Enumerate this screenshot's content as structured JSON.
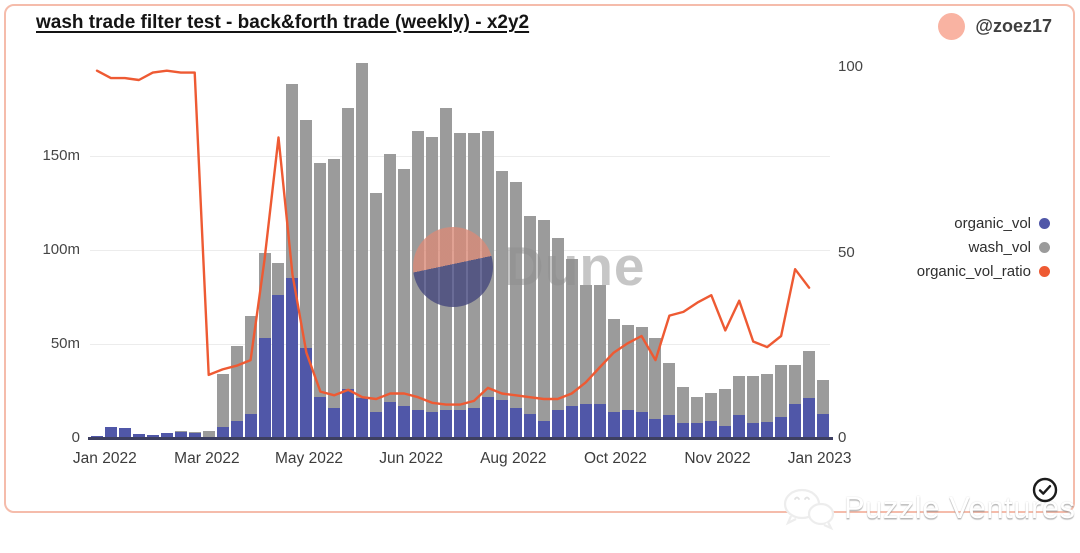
{
  "header": {
    "title": "wash trade filter test - back&forth trade (weekly) - x2y2",
    "account": "@zoez17"
  },
  "legend": [
    {
      "label": "organic_vol",
      "color": "#5057a8"
    },
    {
      "label": "wash_vol",
      "color": "#9b9b9b"
    },
    {
      "label": "organic_vol_ratio",
      "color": "#ee5a33"
    }
  ],
  "watermarks": {
    "dune": "Dune",
    "bottom": "Puzzle Ventures"
  },
  "chart_data": {
    "type": "bar",
    "subtype": "stacked-weekly-bars-with-ratio-line",
    "title": "wash trade filter test - back&forth trade (weekly) - x2y2",
    "x_tick_labels": [
      "Jan 2022",
      "Mar 2022",
      "May 2022",
      "Jun 2022",
      "Aug 2022",
      "Oct 2022",
      "Nov 2022",
      "Jan 2023"
    ],
    "left_axis": {
      "unit": "m",
      "max": 201,
      "ticks": [
        {
          "label": "150m",
          "value": 150
        },
        {
          "label": "100m",
          "value": 100
        },
        {
          "label": "50m",
          "value": 50
        },
        {
          "label": "0",
          "value": 0
        }
      ]
    },
    "right_axis": {
      "max": 100,
      "ticks": [
        {
          "label": "100",
          "value": 100
        },
        {
          "label": "50",
          "value": 50
        },
        {
          "label": "0",
          "value": 0
        }
      ]
    },
    "weeks": [
      "2022-01-02",
      "2022-01-09",
      "2022-01-16",
      "2022-01-23",
      "2022-01-30",
      "2022-02-06",
      "2022-02-13",
      "2022-02-20",
      "2022-02-27",
      "2022-03-06",
      "2022-03-13",
      "2022-03-20",
      "2022-03-27",
      "2022-04-03",
      "2022-04-10",
      "2022-04-17",
      "2022-04-24",
      "2022-05-01",
      "2022-05-08",
      "2022-05-15",
      "2022-05-22",
      "2022-05-29",
      "2022-06-05",
      "2022-06-12",
      "2022-06-19",
      "2022-06-26",
      "2022-07-03",
      "2022-07-10",
      "2022-07-17",
      "2022-07-24",
      "2022-07-31",
      "2022-08-07",
      "2022-08-14",
      "2022-08-21",
      "2022-08-28",
      "2022-09-04",
      "2022-09-11",
      "2022-09-18",
      "2022-09-25",
      "2022-10-02",
      "2022-10-09",
      "2022-10-16",
      "2022-10-23",
      "2022-10-30",
      "2022-11-06",
      "2022-11-13",
      "2022-11-20",
      "2022-11-27",
      "2022-12-04",
      "2022-12-11",
      "2022-12-18",
      "2022-12-25",
      "2023-01-01"
    ],
    "series": [
      {
        "name": "organic_vol",
        "type": "bar",
        "stack": true,
        "axis": "left",
        "unit": "m",
        "color": "#5057a8",
        "values": [
          0.9,
          5.8,
          5.3,
          1.9,
          1.4,
          2.4,
          3.4,
          2.9,
          0.6,
          6,
          9,
          13,
          53,
          76,
          85,
          48,
          22,
          16,
          26,
          21,
          14,
          19,
          17,
          15,
          14,
          15,
          15,
          16,
          22,
          20,
          16,
          13,
          9,
          15,
          17,
          18,
          18,
          14,
          15,
          14,
          10,
          12,
          8,
          8,
          9,
          6.5,
          12,
          8,
          8.5,
          11,
          18,
          21,
          13
        ]
      },
      {
        "name": "wash_vol",
        "type": "bar",
        "stack": true,
        "axis": "left",
        "unit": "m",
        "color": "#9b9b9b",
        "values": [
          0.1,
          0.2,
          0.2,
          0.1,
          0.1,
          0.1,
          0.1,
          0.1,
          2.9,
          28,
          40,
          52,
          45,
          17,
          103,
          121,
          124,
          132,
          149,
          178,
          116,
          132,
          126,
          148,
          146,
          160,
          147,
          146,
          141,
          122,
          120,
          105,
          107,
          91,
          78,
          63,
          63,
          49,
          45,
          45,
          43,
          28,
          19,
          14,
          15,
          19.5,
          21,
          25,
          25.5,
          28,
          21,
          25,
          18
        ]
      },
      {
        "name": "organic_vol_ratio",
        "type": "line",
        "axis": "right",
        "color": "#ee5a33",
        "values": [
          99,
          97,
          97,
          96.5,
          98.5,
          99,
          98.5,
          98.5,
          17,
          18.5,
          19.5,
          21,
          48,
          81,
          44,
          23,
          12.5,
          11.5,
          13,
          11,
          10.5,
          12,
          12,
          11,
          9.5,
          9,
          9,
          10,
          13.5,
          12,
          11.5,
          11,
          10.5,
          10.5,
          12,
          15,
          19,
          23,
          25.5,
          27.5,
          21,
          33,
          34,
          36.5,
          38.5,
          29,
          37,
          26,
          24.5,
          27.5,
          45.5,
          40.5,
          null
        ]
      }
    ]
  }
}
